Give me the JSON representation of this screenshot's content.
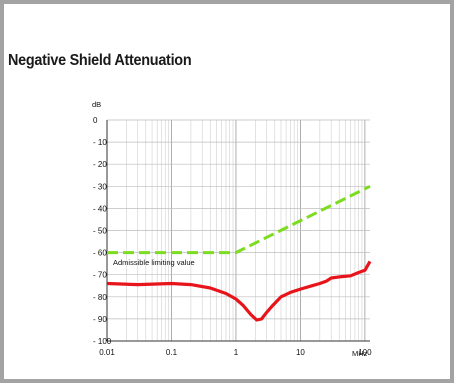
{
  "title": "Negative Shield Attenuation",
  "chart_data": {
    "type": "line",
    "title": "Negative Shield Attenuation",
    "xlabel": "MHz",
    "ylabel": "dB",
    "x_scale": "log",
    "xlim": [
      0.01,
      120
    ],
    "ylim": [
      -100,
      0
    ],
    "x_ticks": [
      0.01,
      0.1,
      1,
      10,
      100
    ],
    "x_tick_labels": [
      "0.01",
      "0.1",
      "1",
      "10",
      "100"
    ],
    "y_ticks": [
      0,
      -10,
      -20,
      -30,
      -40,
      -50,
      -60,
      -70,
      -80,
      -90,
      -100
    ],
    "y_tick_labels": [
      "0",
      "- 10",
      "- 20",
      "- 30",
      "- 40",
      "- 50",
      "- 60",
      "- 70",
      "- 80",
      "- 90",
      "- 100"
    ],
    "grid": true,
    "annotation": "Admissible limiting value",
    "series": [
      {
        "color": "#7ddc1f",
        "style": "dashed",
        "x": [
          0.01,
          1,
          120
        ],
        "y": [
          -60,
          -60,
          -30
        ]
      },
      {
        "color": "#e8141b",
        "style": "solid",
        "x": [
          0.01,
          0.03,
          0.1,
          0.2,
          0.4,
          0.7,
          1,
          1.3,
          1.7,
          2.1,
          2.5,
          3,
          3.7,
          5,
          7,
          10,
          15,
          20,
          25,
          30,
          40,
          60,
          80,
          100,
          120
        ],
        "y": [
          -74,
          -74.5,
          -74,
          -74.5,
          -76,
          -78.5,
          -81,
          -84,
          -88,
          -90.5,
          -90,
          -87,
          -84,
          -80,
          -78,
          -76.5,
          -75,
          -74,
          -73,
          -71.5,
          -71,
          -70.5,
          -69,
          -68,
          -64
        ]
      }
    ]
  }
}
